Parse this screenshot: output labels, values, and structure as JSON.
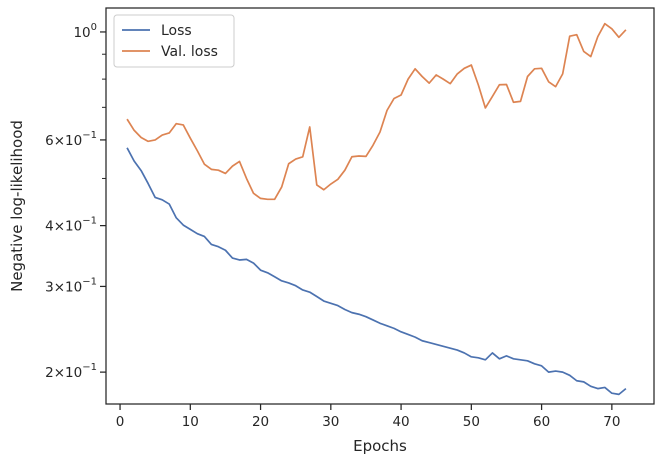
{
  "chart_data": {
    "type": "line",
    "xlabel": "Epochs",
    "ylabel": "Negative log-likelihood",
    "xlim": [
      -2,
      76
    ],
    "ylim": [
      0.172,
      1.12
    ],
    "yscale": "log",
    "x_ticks": [
      0,
      10,
      20,
      30,
      40,
      50,
      60,
      70
    ],
    "y_ticks_major": [
      {
        "value": 0.2,
        "mantissa": "2",
        "base": "10",
        "exponent": "−1"
      },
      {
        "value": 0.3,
        "mantissa": "3",
        "base": "10",
        "exponent": "−1"
      },
      {
        "value": 0.4,
        "mantissa": "4",
        "base": "10",
        "exponent": "−1"
      },
      {
        "value": 0.6,
        "mantissa": "6",
        "base": "10",
        "exponent": "−1"
      },
      {
        "value": 1.0,
        "mantissa": "",
        "base": "10",
        "exponent": "0"
      }
    ],
    "y_ticks_minor": [
      0.5,
      0.7,
      0.8,
      0.9
    ],
    "grid": false,
    "legend_position": "top-left",
    "x": [
      1,
      2,
      3,
      4,
      5,
      6,
      7,
      8,
      9,
      10,
      11,
      12,
      13,
      14,
      15,
      16,
      17,
      18,
      19,
      20,
      21,
      22,
      23,
      24,
      25,
      26,
      27,
      28,
      29,
      30,
      31,
      32,
      33,
      34,
      35,
      36,
      37,
      38,
      39,
      40,
      41,
      42,
      43,
      44,
      45,
      46,
      47,
      48,
      49,
      50,
      51,
      52,
      53,
      54,
      55,
      56,
      57,
      58,
      59,
      60,
      61,
      62,
      63,
      64,
      65,
      66,
      67,
      68,
      69,
      70,
      71,
      72
    ],
    "series": [
      {
        "name": "Loss",
        "color": "#4c72b0",
        "values": [
          0.578,
          0.543,
          0.519,
          0.488,
          0.457,
          0.452,
          0.443,
          0.415,
          0.401,
          0.393,
          0.385,
          0.38,
          0.366,
          0.362,
          0.356,
          0.343,
          0.34,
          0.341,
          0.335,
          0.324,
          0.32,
          0.314,
          0.308,
          0.305,
          0.301,
          0.295,
          0.292,
          0.286,
          0.28,
          0.277,
          0.274,
          0.269,
          0.265,
          0.263,
          0.26,
          0.256,
          0.252,
          0.249,
          0.246,
          0.242,
          0.239,
          0.236,
          0.232,
          0.23,
          0.228,
          0.226,
          0.224,
          0.222,
          0.219,
          0.215,
          0.214,
          0.212,
          0.219,
          0.213,
          0.216,
          0.213,
          0.212,
          0.211,
          0.208,
          0.206,
          0.2,
          0.201,
          0.2,
          0.197,
          0.192,
          0.191,
          0.187,
          0.185,
          0.186,
          0.181,
          0.18,
          0.185
        ]
      },
      {
        "name": "Val. loss",
        "color": "#dd8452",
        "values": [
          0.662,
          0.628,
          0.607,
          0.596,
          0.6,
          0.614,
          0.62,
          0.648,
          0.644,
          0.605,
          0.57,
          0.535,
          0.522,
          0.52,
          0.512,
          0.53,
          0.542,
          0.5,
          0.466,
          0.455,
          0.453,
          0.453,
          0.48,
          0.536,
          0.548,
          0.554,
          0.638,
          0.485,
          0.474,
          0.487,
          0.498,
          0.52,
          0.554,
          0.556,
          0.555,
          0.585,
          0.623,
          0.69,
          0.73,
          0.742,
          0.8,
          0.84,
          0.81,
          0.785,
          0.816,
          0.8,
          0.783,
          0.82,
          0.842,
          0.855,
          0.778,
          0.698,
          0.737,
          0.779,
          0.78,
          0.717,
          0.72,
          0.81,
          0.84,
          0.842,
          0.79,
          0.772,
          0.82,
          0.98,
          0.987,
          0.912,
          0.89,
          0.978,
          1.04,
          1.015,
          0.975,
          1.01
        ]
      }
    ]
  }
}
